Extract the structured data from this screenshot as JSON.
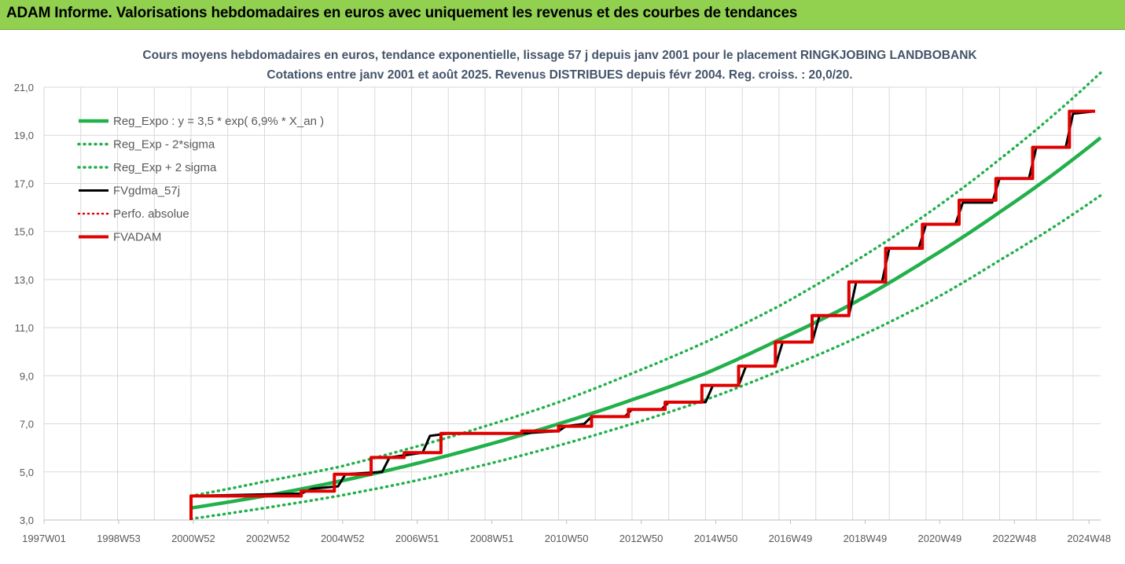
{
  "header": {
    "title": "ADAM Informe. Valorisations hebdomadaires en euros avec uniquement les revenus et des courbes de tendances"
  },
  "colors": {
    "header_bg": "#92d050",
    "reg_expo": "#22b04b",
    "reg_bands": "#22b04b",
    "fvgdma": "#000000",
    "perfo": "#e00000",
    "fvadam": "#e00000",
    "title_text": "#44546a",
    "grid": "#d9d9d9"
  },
  "chart_data": {
    "type": "line",
    "title": "Cours moyens hebdomadaires en euros, tendance exponentielle, lissage 57 j depuis janv 2001 pour le placement RINGKJOBING LANDBOBANK",
    "subtitle": "Cotations entre janv 2001 et août 2025.  Revenus DISTRIBUES depuis févr 2004.  Reg. croiss. : 20,0/20.",
    "xlabel": "",
    "ylabel": "",
    "x_ticks": [
      "1997W01",
      "1998W53",
      "2000W52",
      "2002W52",
      "2004W52",
      "2006W51",
      "2008W51",
      "2010W50",
      "2012W50",
      "2014W50",
      "2016W49",
      "2018W49",
      "2020W49",
      "2022W48",
      "2024W48"
    ],
    "x_range": [
      1997.0,
      2025.75
    ],
    "y_ticks": [
      "3,0",
      "5,0",
      "7,0",
      "9,0",
      "11,0",
      "13,0",
      "15,0",
      "17,0",
      "19,0",
      "21,0"
    ],
    "ylim": [
      3.0,
      21.0
    ],
    "grid": true,
    "legend_position": "top-left",
    "legend": [
      {
        "label": "Reg_Expo : y = 3,5 * exp( 6,9% *  X_an )",
        "style": "solid",
        "color": "#22b04b"
      },
      {
        "label": "Reg_Exp - 2*sigma",
        "style": "dotted",
        "color": "#22b04b"
      },
      {
        "label": "Reg_Exp + 2 sigma",
        "style": "dotted",
        "color": "#22b04b"
      },
      {
        "label": "FVgdma_57j",
        "style": "solid",
        "color": "#000000"
      },
      {
        "label": "Perfo. absolue",
        "style": "dotted",
        "color": "#e00000"
      },
      {
        "label": "FVADAM",
        "style": "solid",
        "color": "#e00000"
      }
    ],
    "series": [
      {
        "name": "Reg_Expo : y = 3,5 * exp( 6,9% *  X_an )",
        "x": [
          2001.0,
          2003.0,
          2005.0,
          2007.0,
          2009.0,
          2011.0,
          2013.0,
          2015.0,
          2017.0,
          2019.0,
          2021.0,
          2023.0,
          2025.75
        ],
        "values": [
          3.5,
          4.0,
          4.6,
          5.3,
          6.1,
          7.0,
          8.0,
          9.1,
          10.5,
          12.0,
          13.8,
          15.8,
          18.9
        ]
      },
      {
        "name": "Reg_Exp - 2*sigma",
        "x": [
          2001.0,
          2003.0,
          2005.0,
          2007.0,
          2009.0,
          2011.0,
          2013.0,
          2015.0,
          2017.0,
          2019.0,
          2021.0,
          2023.0,
          2025.75
        ],
        "values": [
          3.05,
          3.5,
          4.0,
          4.6,
          5.3,
          6.1,
          7.0,
          8.0,
          9.2,
          10.5,
          12.0,
          13.8,
          16.5
        ]
      },
      {
        "name": "Reg_Exp + 2 sigma",
        "x": [
          2001.0,
          2003.0,
          2005.0,
          2007.0,
          2009.0,
          2011.0,
          2013.0,
          2015.0,
          2017.0,
          2019.0,
          2021.0,
          2023.0,
          2025.75
        ],
        "values": [
          4.0,
          4.6,
          5.2,
          6.0,
          6.9,
          7.9,
          9.1,
          10.4,
          11.9,
          13.7,
          15.7,
          18.0,
          21.6
        ]
      },
      {
        "name": "FVgdma_57j",
        "x": [
          2001.0,
          2004.0,
          2004.3,
          2005.0,
          2005.2,
          2006.2,
          2006.4,
          2007.3,
          2007.5,
          2008.0,
          2010.0,
          2011.0,
          2011.2,
          2011.7,
          2011.9,
          2012.8,
          2013.0,
          2013.8,
          2014.0,
          2015.0,
          2015.2,
          2015.9,
          2016.1,
          2016.9,
          2017.1,
          2017.9,
          2018.1,
          2018.9,
          2019.1,
          2019.8,
          2020.0,
          2020.8,
          2021.0,
          2021.8,
          2022.0,
          2022.8,
          2023.0,
          2023.8,
          2024.0,
          2024.8,
          2025.0,
          2025.6
        ],
        "values": [
          4.0,
          4.1,
          4.3,
          4.4,
          4.9,
          5.0,
          5.6,
          5.8,
          6.5,
          6.6,
          6.6,
          6.7,
          6.9,
          7.0,
          7.3,
          7.3,
          7.6,
          7.6,
          7.9,
          7.9,
          8.6,
          8.6,
          9.4,
          9.4,
          10.4,
          10.4,
          11.5,
          11.5,
          12.9,
          12.9,
          14.3,
          14.3,
          15.3,
          15.3,
          16.2,
          16.2,
          17.2,
          17.2,
          18.5,
          18.5,
          19.9,
          20.0
        ]
      },
      {
        "name": "Perfo. absolue",
        "x": [],
        "values": []
      },
      {
        "name": "FVADAM",
        "x": [
          2001.0,
          2001.0,
          2004.0,
          2004.0,
          2004.9,
          2004.9,
          2005.9,
          2005.9,
          2006.8,
          2006.8,
          2007.8,
          2007.8,
          2010.0,
          2010.0,
          2011.0,
          2011.0,
          2011.9,
          2011.9,
          2012.9,
          2012.9,
          2013.9,
          2013.9,
          2014.9,
          2014.9,
          2015.9,
          2015.9,
          2016.9,
          2016.9,
          2017.9,
          2017.9,
          2018.9,
          2018.9,
          2019.9,
          2019.9,
          2020.9,
          2020.9,
          2021.9,
          2021.9,
          2022.9,
          2022.9,
          2023.9,
          2023.9,
          2024.9,
          2024.9,
          2025.6
        ],
        "values": [
          3.0,
          4.0,
          4.0,
          4.2,
          4.2,
          4.9,
          4.9,
          5.6,
          5.6,
          5.8,
          5.8,
          6.6,
          6.6,
          6.7,
          6.7,
          6.9,
          6.9,
          7.3,
          7.3,
          7.6,
          7.6,
          7.9,
          7.9,
          8.6,
          8.6,
          9.4,
          9.4,
          10.4,
          10.4,
          11.5,
          11.5,
          12.9,
          12.9,
          14.3,
          14.3,
          15.3,
          15.3,
          16.3,
          16.3,
          17.2,
          17.2,
          18.5,
          18.5,
          20.0,
          20.0
        ]
      }
    ]
  }
}
